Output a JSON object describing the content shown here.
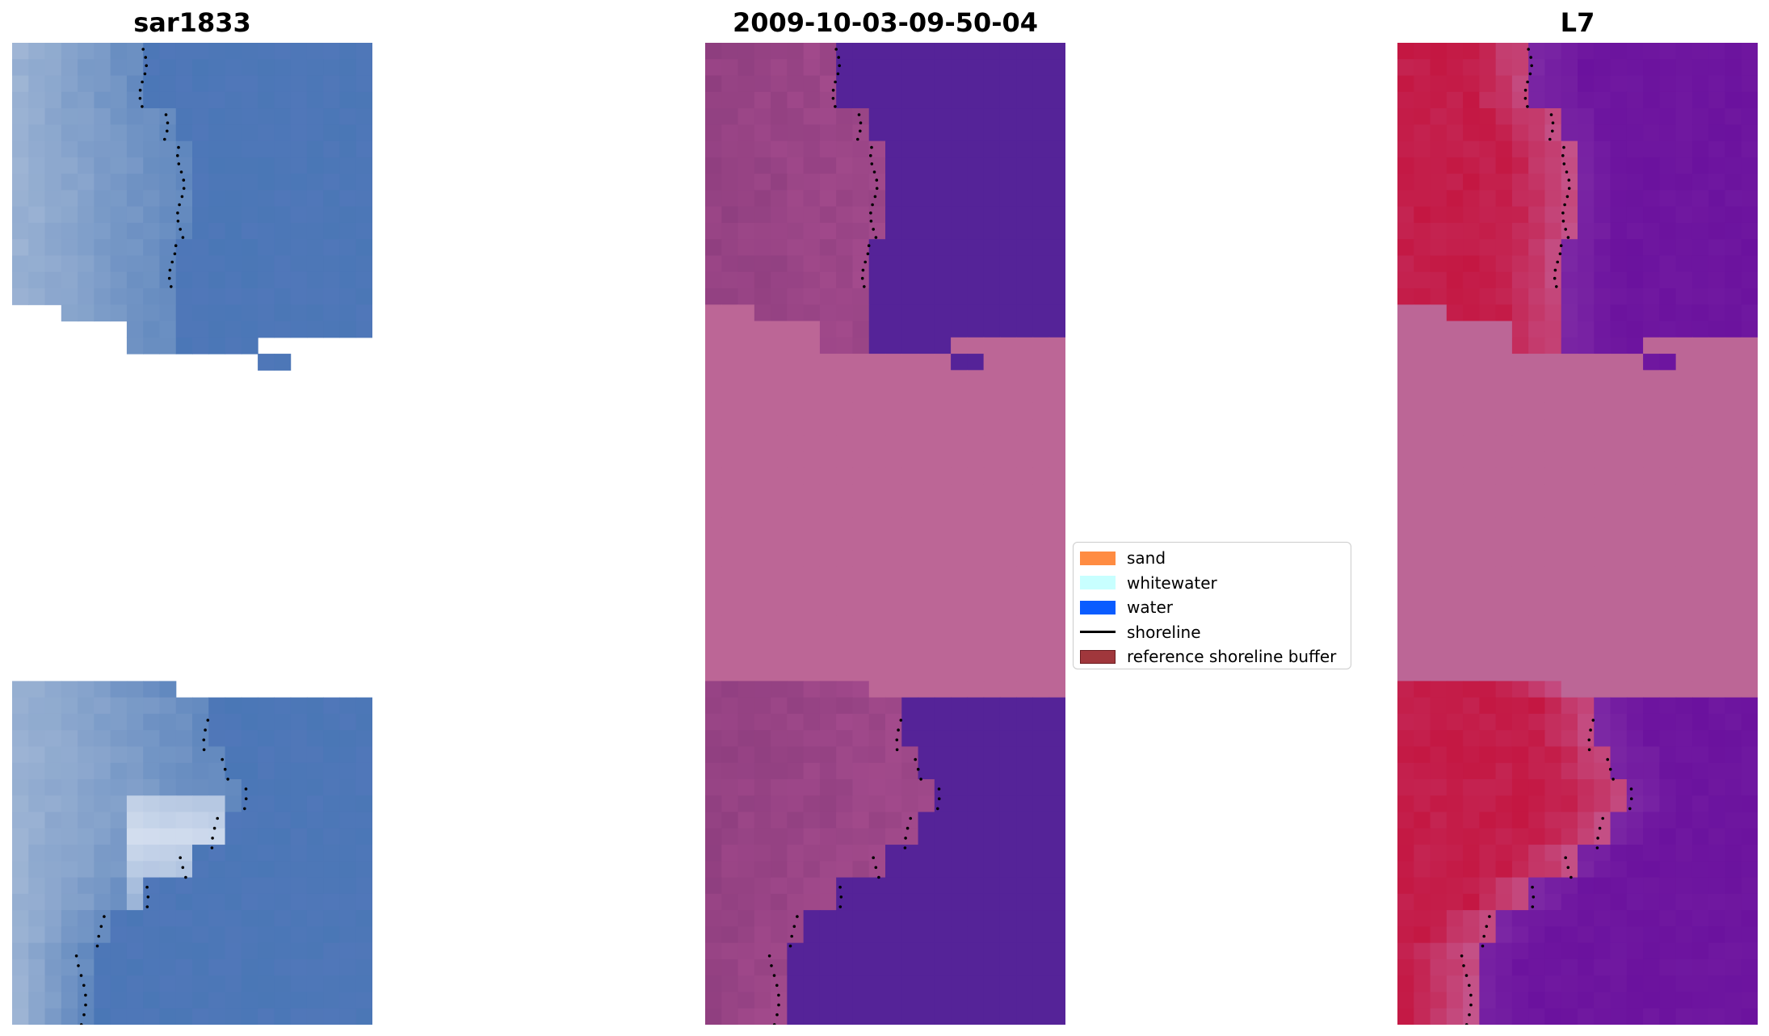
{
  "panels": [
    {
      "title": "sar1833",
      "style": "rgb"
    },
    {
      "title": "2009-10-03-09-50-04",
      "style": "classified"
    },
    {
      "title": "L7",
      "style": "index"
    }
  ],
  "legend": {
    "items": [
      {
        "label": "sand",
        "color": "#ff8c42",
        "kind": "patch"
      },
      {
        "label": "whitewater",
        "color": "#c8ffff",
        "kind": "patch"
      },
      {
        "label": "water",
        "color": "#0a5cff",
        "kind": "patch"
      },
      {
        "label": "shoreline",
        "color": "#000000",
        "kind": "line"
      },
      {
        "label": "reference shoreline buffer",
        "color": "#a0373c",
        "kind": "patch"
      }
    ]
  },
  "colors": {
    "nodata_pink": "#bc6696",
    "classified_water": "#552398",
    "classified_land": "#8e3e7f",
    "index_land": "#c41742",
    "index_water": "#6b129e",
    "rgb_water": "#4a77b6",
    "rgb_land": "#a8bcd8",
    "shoreline": "#000000"
  }
}
